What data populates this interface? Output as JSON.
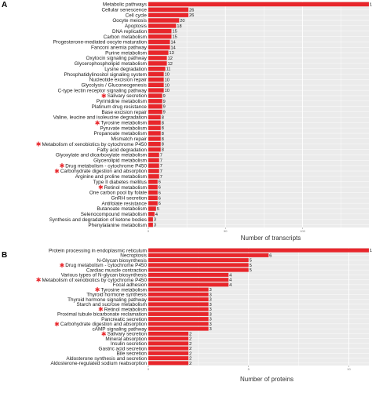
{
  "colors": {
    "bar": "#e8262b",
    "panel": "#ebebeb",
    "grid": "#ffffff",
    "star": "#e8262b"
  },
  "marker_symbol": "✱",
  "chart_data": [
    {
      "type": "bar",
      "orientation": "horizontal",
      "panel_label": "A",
      "xlabel": "Number of transcripts",
      "xlim": [
        0,
        143
      ],
      "xticks": [
        "0",
        "50",
        "100"
      ],
      "grid": true,
      "categories": [
        "Metabolic pathways",
        "Cellular senescence",
        "Cell cycle",
        "Oocyte meiosis",
        "Apoptosis",
        "DNA replication",
        "Carbon metabolism",
        "Progesterone-mediated oocyte maturation",
        "Fanconi anemia pathway",
        "Purine metabolism",
        "Oxytocin signaling pathway",
        "Glycerophospholipid metabolism",
        "Lysine degradation",
        "Phosphatidylinositol signaling system",
        "Nucleotide excision repair",
        "Glycolysis / Gluconeogenesis",
        "C-type lectin receptor signaling pathway",
        "Salivary secretion",
        "Pyrimidine metabolism",
        "Platinum drug resistance",
        "Base excision repair",
        "Valine, leucine and isoleucine degradation",
        "Tyrosine metabolism",
        "Pyruvate metabolism",
        "Propanoate metabolism",
        "Mismatch repair",
        "Metabolism of xenobiotics by cytochrome P450",
        "Fatty acid degradation",
        "Glyoxylate and dicarboxylate metabolism",
        "Glycerolipid metabolism",
        "Drug metabolism - cytochrome P450",
        "Carbohydrate digestion and absorption",
        "Arginine and proline metabolism",
        "Type II diabetes mellitus",
        "Retinol metabolism",
        "One carbon pool by folate",
        "GnRH secretion",
        "Antifolate resistance",
        "Butanoate metabolism",
        "Selenocompound metabolism",
        "Synthesis and degradation of ketone bodies",
        "Phenylalanine metabolism"
      ],
      "values": [
        143,
        26,
        26,
        20,
        18,
        15,
        15,
        14,
        14,
        13,
        12,
        12,
        11,
        10,
        10,
        10,
        10,
        9,
        9,
        9,
        9,
        8,
        8,
        8,
        8,
        8,
        8,
        8,
        7,
        7,
        7,
        7,
        7,
        6,
        6,
        6,
        6,
        6,
        5,
        4,
        3,
        3
      ],
      "starred": [
        "Salivary secretion",
        "Tyrosine metabolism",
        "Metabolism of xenobiotics by cytochrome P450",
        "Drug metabolism - cytochrome P450",
        "Carbohydrate digestion and absorption",
        "Retinol metabolism"
      ]
    },
    {
      "type": "bar",
      "orientation": "horizontal",
      "panel_label": "B",
      "xlabel": "Number of proteins",
      "xlim": [
        0,
        11
      ],
      "xticks": [
        "0",
        "5",
        "10"
      ],
      "grid": true,
      "categories": [
        "Protein processing in endoplasmic reticulum",
        "Necroptosis",
        "N-Glycan biosynthesis",
        "Drug metabolism - cytochrome P450",
        "Cardiac muscle contraction",
        "Various types of N-glycan biosynthesis",
        "Metabolism of xenobiotics by cytochrome P450",
        "Focal adhesion",
        "Tyrosine metabolism",
        "Thyroid hormone synthesis",
        "Thyroid hormone signaling pathway",
        "Starch and sucrose metabolism",
        "Retinol metabolism",
        "Proximal tubule bicarbonate reclamation",
        "Pancreatic secretion",
        "Carbohydrate digestion and absorption",
        "cAMP signaling pathway",
        "Salivary secretion",
        "Mineral absorption",
        "Insulin secretion",
        "Gastric acid secretion",
        "Bile secretion",
        "Aldosterone synthesis and secretion",
        "Aldosterone-regulated sodium reabsorption"
      ],
      "values": [
        11,
        6,
        5,
        5,
        5,
        4,
        4,
        4,
        3,
        3,
        3,
        3,
        3,
        3,
        3,
        3,
        3,
        2,
        2,
        2,
        2,
        2,
        2,
        2
      ],
      "starred": [
        "Drug metabolism - cytochrome P450",
        "Metabolism of xenobiotics by cytochrome P450",
        "Tyrosine metabolism",
        "Retinol metabolism",
        "Carbohydrate digestion and absorption",
        "Salivary secretion"
      ]
    }
  ]
}
